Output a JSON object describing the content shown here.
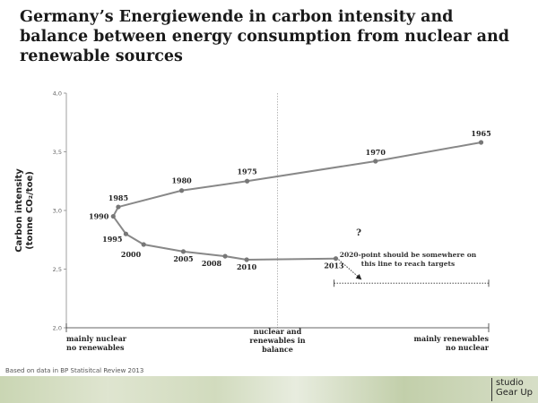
{
  "title": "Germany’s Energiewende in carbon intensity and balance between energy consumption from nuclear and renewable sources",
  "source_note": "Based on data in BP Statisitcal Review 2013",
  "logo": {
    "line1": "studio",
    "line2": "Gear Up"
  },
  "chart_data": {
    "type": "scatter",
    "title": "Germany’s Energiewende in carbon intensity and balance between energy consumption from nuclear and renewable sources",
    "ylabel_line1": "Carbon intensity",
    "ylabel_line2": "(tonne CO₂/toe)",
    "ylim": [
      2.0,
      4.0
    ],
    "yticks": [
      "2,0",
      "2,5",
      "3,0",
      "3,5",
      "4,0"
    ],
    "ytick_values": [
      2.0,
      2.5,
      3.0,
      3.5,
      4.0
    ],
    "x_note": "balance index, 0 = mainly nuclear/no renewables, 1 = mainly renewables/no nuclear",
    "xlim": [
      0,
      1
    ],
    "points": [
      {
        "label": "1965",
        "x": 0.982,
        "y": 3.58
      },
      {
        "label": "1970",
        "x": 0.732,
        "y": 3.42
      },
      {
        "label": "1975",
        "x": 0.428,
        "y": 3.25
      },
      {
        "label": "1980",
        "x": 0.273,
        "y": 3.17
      },
      {
        "label": "1985",
        "x": 0.123,
        "y": 3.03
      },
      {
        "label": "1990",
        "x": 0.111,
        "y": 2.95
      },
      {
        "label": "1995",
        "x": 0.141,
        "y": 2.8
      },
      {
        "label": "2000",
        "x": 0.183,
        "y": 2.71
      },
      {
        "label": "2005",
        "x": 0.277,
        "y": 2.65
      },
      {
        "label": "2008",
        "x": 0.376,
        "y": 2.61
      },
      {
        "label": "2010",
        "x": 0.427,
        "y": 2.58
      },
      {
        "label": "2013",
        "x": 0.638,
        "y": 2.59
      }
    ],
    "balance_label_line1": "nuclear and",
    "balance_label_line2": "renewables in",
    "balance_label_line3": "balance",
    "left_label_line1": "mainly nuclear",
    "left_label_line2": "no renewables",
    "right_label_line1": "mainly renewables",
    "right_label_line2": "no nuclear",
    "question_mark": "?",
    "target_y": 2.38,
    "target_note_line1": "2020-point should be somewhere on",
    "target_note_line2": "this line to reach targets"
  }
}
